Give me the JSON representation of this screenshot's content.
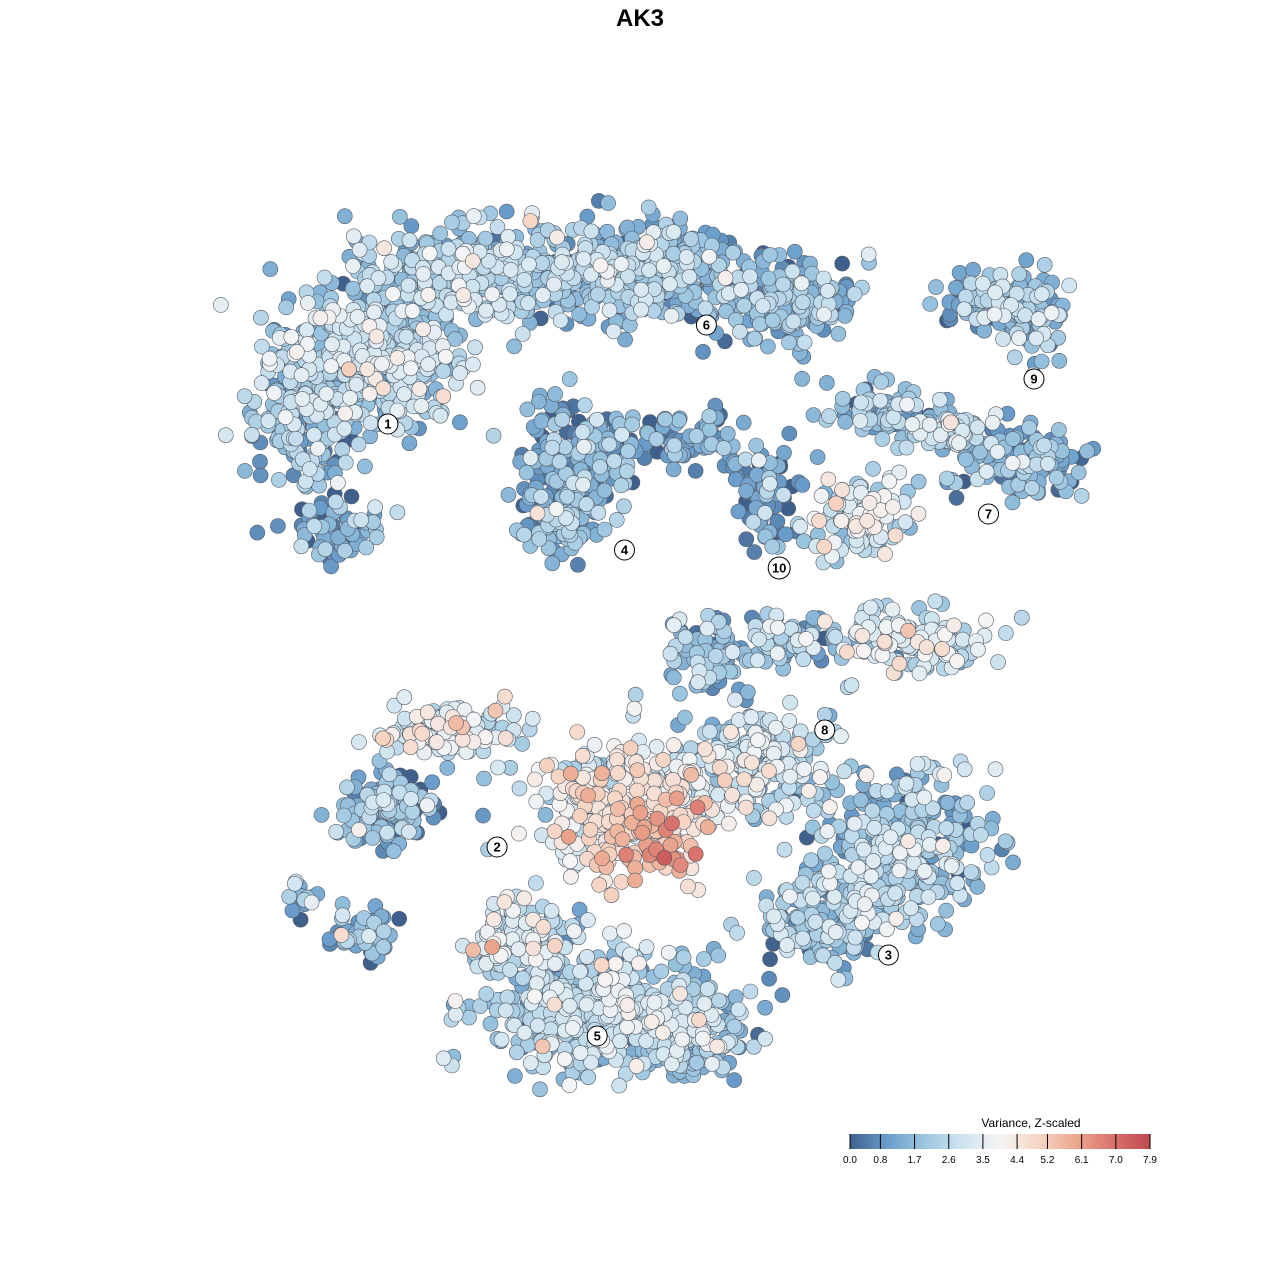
{
  "chart_data": {
    "type": "scatter",
    "title": "AK3",
    "xlabel": "",
    "ylabel": "",
    "grid": false,
    "legend_placement": "bottom-right",
    "clusters": [
      {
        "label": "1",
        "x": 0.19,
        "y": 0.74
      },
      {
        "label": "2",
        "x": 0.31,
        "y": 0.27
      },
      {
        "label": "3",
        "x": 0.74,
        "y": 0.15
      },
      {
        "label": "4",
        "x": 0.45,
        "y": 0.6
      },
      {
        "label": "5",
        "x": 0.42,
        "y": 0.06
      },
      {
        "label": "6",
        "x": 0.54,
        "y": 0.85
      },
      {
        "label": "7",
        "x": 0.85,
        "y": 0.64
      },
      {
        "label": "8",
        "x": 0.67,
        "y": 0.4
      },
      {
        "label": "9",
        "x": 0.9,
        "y": 0.79
      },
      {
        "label": "10",
        "x": 0.62,
        "y": 0.58
      }
    ],
    "hotspot": {
      "x": 0.49,
      "y": 0.23
    },
    "colorbar": {
      "title": "Variance, Z-scaled",
      "min": 0.0,
      "max": 7.9,
      "ticks": [
        "0.0",
        "0.8",
        "1.7",
        "2.6",
        "3.5",
        "4.4",
        "5.2",
        "6.1",
        "7.0",
        "7.9"
      ],
      "colors": [
        "#3f5f8c",
        "#6a9ecc",
        "#9cc6e0",
        "#cfe4f0",
        "#f5f5f5",
        "#f7d5c4",
        "#eca98f",
        "#d9736c",
        "#c0484f"
      ]
    }
  }
}
